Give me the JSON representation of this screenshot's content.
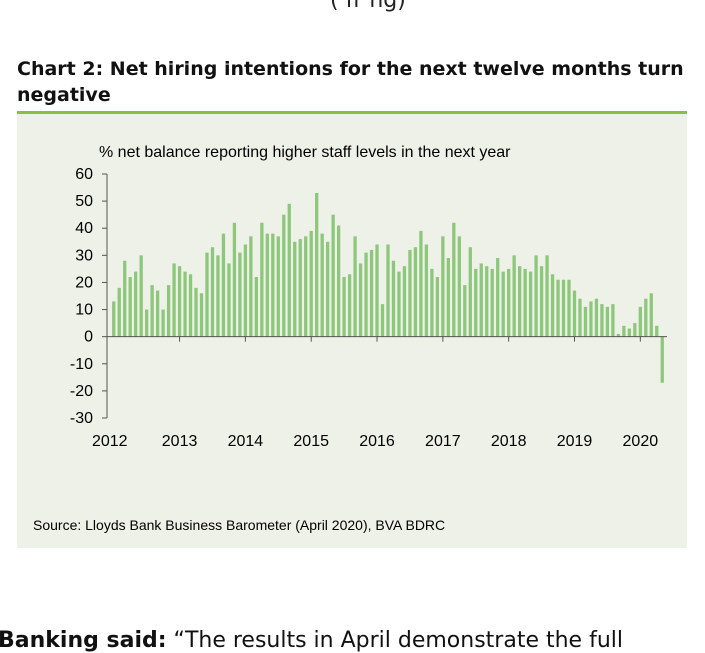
{
  "page": {
    "top_fragment": "(  fr  ng)",
    "heading": "Chart 2: Net hiring intentions for the next twelve months turn negative",
    "bottom_fragment_bold": "Banking said:",
    "bottom_fragment_rest": " “The results in April demonstrate the full"
  },
  "colors": {
    "bar": "#8dc77b",
    "rule": "#8cbf3f",
    "panel": "#eef1e8"
  },
  "chart_data": {
    "type": "bar",
    "subtitle": "% net balance reporting higher staff levels in the next year",
    "source": "Source: Lloyds Bank Business Barometer (April 2020), BVA BDRC",
    "ylim": [
      -30,
      60
    ],
    "yticks": [
      60,
      50,
      40,
      30,
      20,
      10,
      0,
      -10,
      -20,
      -30
    ],
    "xticks": [
      "2012",
      "2013",
      "2014",
      "2015",
      "2016",
      "2017",
      "2018",
      "2019",
      "2020"
    ],
    "start": "2012-01",
    "end": "2020-04",
    "values": [
      13,
      18,
      28,
      22,
      24,
      30,
      10,
      19,
      17,
      10,
      19,
      27,
      26,
      24,
      23,
      18,
      16,
      31,
      33,
      30,
      38,
      27,
      42,
      31,
      34,
      37,
      22,
      42,
      38,
      38,
      37,
      45,
      49,
      35,
      36,
      37,
      39,
      53,
      38,
      35,
      45,
      41,
      22,
      23,
      37,
      27,
      31,
      32,
      34,
      12,
      34,
      28,
      24,
      26,
      32,
      33,
      39,
      34,
      25,
      22,
      37,
      29,
      42,
      37,
      19,
      33,
      25,
      27,
      26,
      25,
      29,
      24,
      25,
      30,
      26,
      25,
      24,
      30,
      26,
      30,
      23,
      21,
      21,
      21,
      17,
      14,
      11,
      13,
      14,
      12,
      11,
      12,
      1,
      4,
      3,
      5,
      11,
      14,
      16,
      4,
      -17
    ]
  }
}
